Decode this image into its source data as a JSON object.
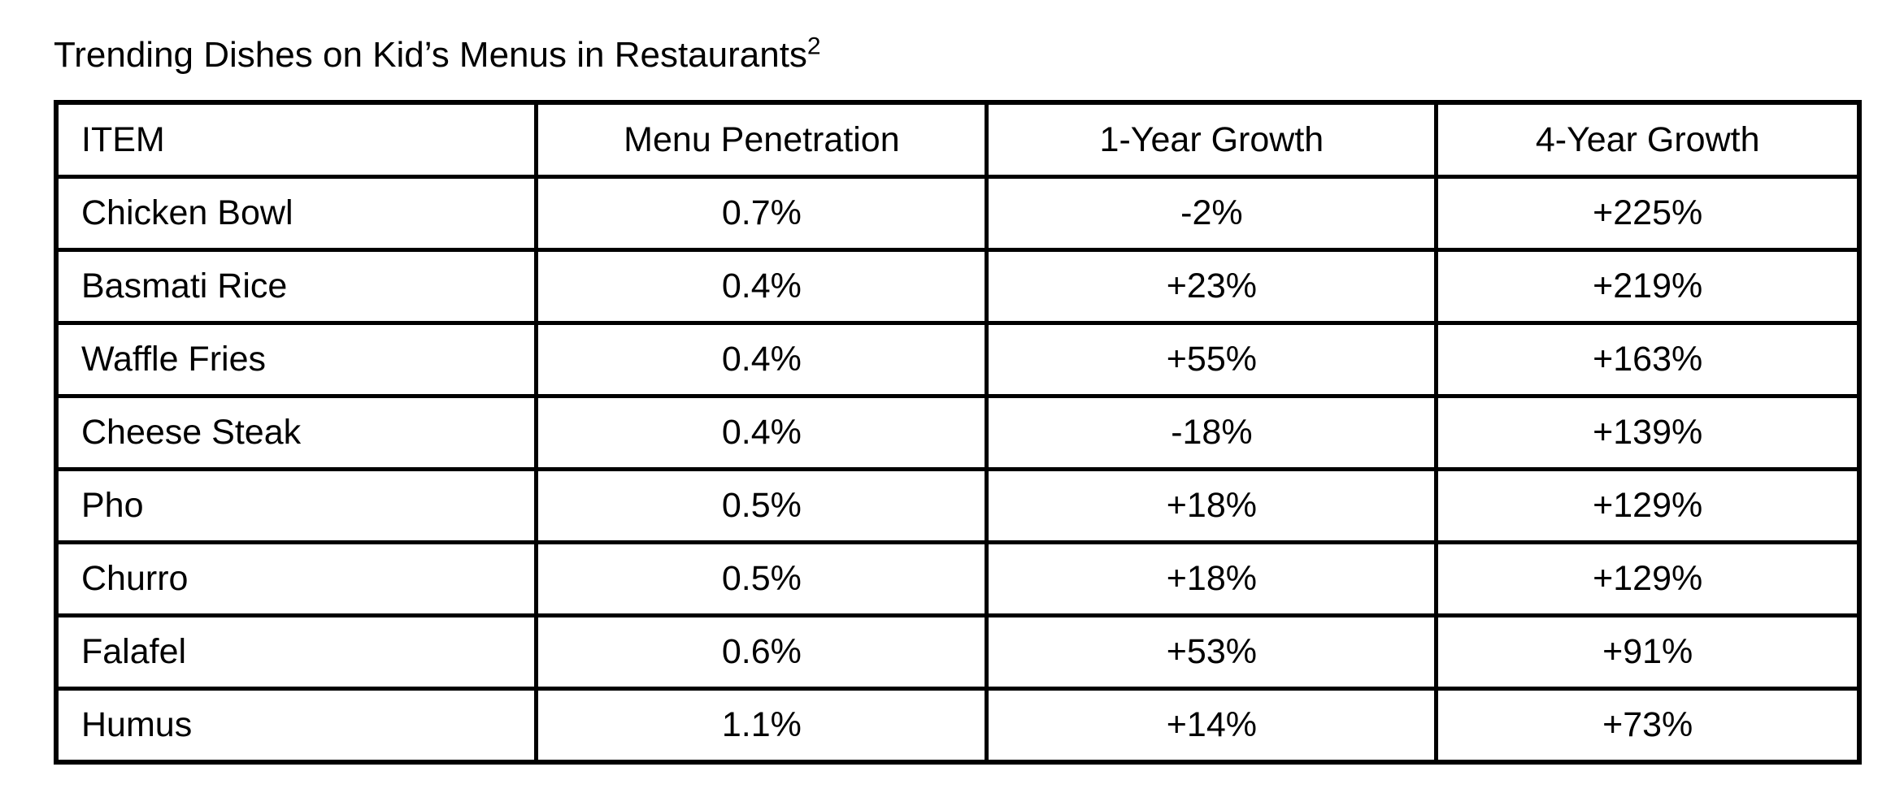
{
  "title": {
    "text": "Trending Dishes on Kid’s Menus in Restaurants",
    "footnote_ref": "2"
  },
  "colors": {
    "background": "#ffffff",
    "border": "#000000",
    "text": "#000000"
  },
  "table": {
    "headers": [
      "ITEM",
      "Menu Penetration",
      "1-Year Growth",
      "4-Year Growth"
    ],
    "rows": [
      {
        "item": "Chicken Bowl",
        "menu_penetration": "0.7%",
        "one_year_growth": "-2%",
        "four_year_growth": "+225%"
      },
      {
        "item": "Basmati Rice",
        "menu_penetration": "0.4%",
        "one_year_growth": "+23%",
        "four_year_growth": "+219%"
      },
      {
        "item": "Waffle Fries",
        "menu_penetration": "0.4%",
        "one_year_growth": "+55%",
        "four_year_growth": "+163%"
      },
      {
        "item": "Cheese Steak",
        "menu_penetration": "0.4%",
        "one_year_growth": "-18%",
        "four_year_growth": "+139%"
      },
      {
        "item": "Pho",
        "menu_penetration": "0.5%",
        "one_year_growth": "+18%",
        "four_year_growth": "+129%"
      },
      {
        "item": "Churro",
        "menu_penetration": "0.5%",
        "one_year_growth": "+18%",
        "four_year_growth": "+129%"
      },
      {
        "item": "Falafel",
        "menu_penetration": "0.6%",
        "one_year_growth": "+53%",
        "four_year_growth": "+91%"
      },
      {
        "item": "Humus",
        "menu_penetration": "1.1%",
        "one_year_growth": "+14%",
        "four_year_growth": "+73%"
      }
    ]
  }
}
